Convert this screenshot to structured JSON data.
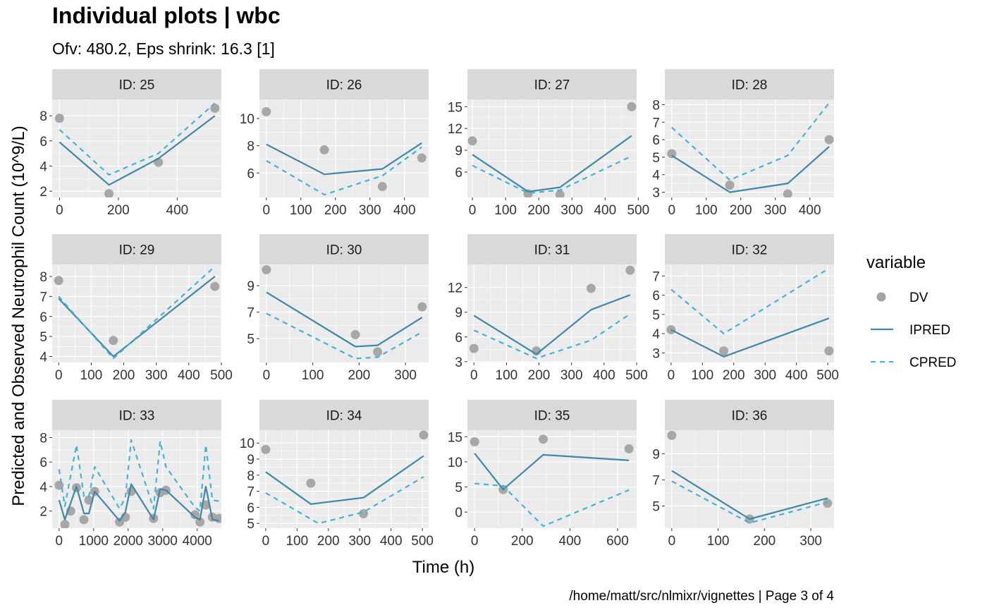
{
  "chart_data": {
    "type": "line",
    "title": "Individual plots | wbc",
    "subtitle": "Ofv: 480.2, Eps shrink: 16.3 [1]",
    "xlabel": "Time (h)",
    "ylabel": "Predicted and Observed Neutrophil Count (10^9/L)",
    "caption": "/home/matt/src/nlmixr/vignettes | Page 3 of 4",
    "legend": {
      "title": "variable",
      "position": "right",
      "entries": [
        {
          "label": "DV",
          "kind": "point",
          "color": "#a3a3a3"
        },
        {
          "label": "IPRED",
          "kind": "solid",
          "color": "#3f88a6"
        },
        {
          "label": "CPRED",
          "kind": "dashed",
          "color": "#46b1d6"
        }
      ]
    },
    "grid": true,
    "panels": [
      {
        "strip": "ID: 25",
        "xlim": [
          -25,
          550
        ],
        "ylim": [
          1.5,
          9.3
        ],
        "xticks": [
          0,
          200,
          400
        ],
        "xtick_labels": [
          "0",
          "200",
          "400"
        ],
        "yticks": [
          2,
          4,
          6,
          8
        ],
        "ytick_labels": [
          "2",
          "4",
          "6",
          "8"
        ],
        "dv": [
          [
            0,
            7.8
          ],
          [
            168,
            1.8
          ],
          [
            336,
            4.3
          ],
          [
            528,
            8.6
          ]
        ],
        "ipred": [
          [
            0,
            5.9
          ],
          [
            168,
            2.5
          ],
          [
            336,
            4.6
          ],
          [
            528,
            8.0
          ]
        ],
        "cpred": [
          [
            0,
            6.9
          ],
          [
            168,
            3.3
          ],
          [
            336,
            5.0
          ],
          [
            528,
            9.0
          ]
        ]
      },
      {
        "strip": "ID: 26",
        "xlim": [
          -20,
          470
        ],
        "ylim": [
          4.2,
          11.4
        ],
        "xticks": [
          0,
          100,
          200,
          300,
          400
        ],
        "xtick_labels": [
          "0",
          "100",
          "200",
          "300",
          "400"
        ],
        "yticks": [
          6,
          8,
          10
        ],
        "ytick_labels": [
          "6",
          "8",
          "10"
        ],
        "dv": [
          [
            0,
            10.5
          ],
          [
            168,
            7.7
          ],
          [
            336,
            5.0
          ],
          [
            450,
            7.1
          ]
        ],
        "ipred": [
          [
            0,
            8.1
          ],
          [
            168,
            5.9
          ],
          [
            336,
            6.3
          ],
          [
            450,
            8.2
          ]
        ],
        "cpred": [
          [
            0,
            6.9
          ],
          [
            168,
            4.4
          ],
          [
            336,
            5.8
          ],
          [
            450,
            7.9
          ]
        ]
      },
      {
        "strip": "ID: 27",
        "xlim": [
          -15,
          495
        ],
        "ylim": [
          2.5,
          16.0
        ],
        "xticks": [
          0,
          100,
          200,
          300,
          400,
          500
        ],
        "xtick_labels": [
          "0",
          "100",
          "200",
          "300",
          "400",
          "500"
        ],
        "yticks": [
          6,
          9,
          12,
          15
        ],
        "ytick_labels": [
          "6",
          "9",
          "12",
          "15"
        ],
        "dv": [
          [
            0,
            10.3
          ],
          [
            168,
            3.0
          ],
          [
            264,
            2.9
          ],
          [
            480,
            15.0
          ]
        ],
        "ipred": [
          [
            0,
            8.4
          ],
          [
            168,
            3.3
          ],
          [
            264,
            3.9
          ],
          [
            480,
            11.0
          ]
        ],
        "cpred": [
          [
            0,
            6.9
          ],
          [
            168,
            3.1
          ],
          [
            264,
            3.5
          ],
          [
            480,
            8.2
          ]
        ]
      },
      {
        "strip": "ID: 28",
        "xlim": [
          -20,
          470
        ],
        "ylim": [
          2.7,
          8.3
        ],
        "xticks": [
          0,
          100,
          200,
          300,
          400
        ],
        "xtick_labels": [
          "0",
          "100",
          "200",
          "300",
          "400"
        ],
        "yticks": [
          3,
          4,
          5,
          6,
          7,
          8
        ],
        "ytick_labels": [
          "3",
          "4",
          "5",
          "6",
          "7",
          "8"
        ],
        "dv": [
          [
            0,
            5.2
          ],
          [
            168,
            3.4
          ],
          [
            336,
            2.9
          ],
          [
            456,
            6.0
          ]
        ],
        "ipred": [
          [
            0,
            5.1
          ],
          [
            168,
            3.0
          ],
          [
            336,
            3.5
          ],
          [
            456,
            5.6
          ]
        ],
        "cpred": [
          [
            0,
            6.7
          ],
          [
            168,
            3.7
          ],
          [
            336,
            5.1
          ],
          [
            456,
            8.1
          ]
        ]
      },
      {
        "strip": "ID: 29",
        "xlim": [
          -20,
          500
        ],
        "ylim": [
          3.7,
          8.6
        ],
        "xticks": [
          0,
          100,
          200,
          300,
          400,
          500
        ],
        "xtick_labels": [
          "0",
          "100",
          "200",
          "300",
          "400",
          "500"
        ],
        "yticks": [
          4,
          5,
          6,
          7,
          8
        ],
        "ytick_labels": [
          "4",
          "5",
          "6",
          "7",
          "8"
        ],
        "dv": [
          [
            0,
            7.8
          ],
          [
            168,
            4.8
          ],
          [
            480,
            7.5
          ]
        ],
        "ipred": [
          [
            0,
            6.9
          ],
          [
            168,
            4.0
          ],
          [
            480,
            8.0
          ]
        ],
        "cpred": [
          [
            0,
            7.0
          ],
          [
            168,
            3.9
          ],
          [
            480,
            8.5
          ]
        ]
      },
      {
        "strip": "ID: 30",
        "xlim": [
          -15,
          350
        ],
        "ylim": [
          3.2,
          10.6
        ],
        "xticks": [
          0,
          100,
          200,
          300
        ],
        "xtick_labels": [
          "0",
          "100",
          "200",
          "300"
        ],
        "yticks": [
          5,
          7,
          9
        ],
        "ytick_labels": [
          "5",
          "7",
          "9"
        ],
        "dv": [
          [
            0,
            10.2
          ],
          [
            192,
            5.3
          ],
          [
            240,
            4.0
          ],
          [
            336,
            7.4
          ]
        ],
        "ipred": [
          [
            0,
            8.5
          ],
          [
            192,
            4.4
          ],
          [
            240,
            4.5
          ],
          [
            336,
            6.6
          ]
        ],
        "cpred": [
          [
            0,
            6.9
          ],
          [
            192,
            3.5
          ],
          [
            240,
            3.6
          ],
          [
            336,
            5.5
          ]
        ]
      },
      {
        "strip": "ID: 31",
        "xlim": [
          -20,
          500
        ],
        "ylim": [
          2.9,
          14.8
        ],
        "xticks": [
          0,
          100,
          200,
          300,
          400,
          500
        ],
        "xtick_labels": [
          "0",
          "100",
          "200",
          "300",
          "400",
          "500"
        ],
        "yticks": [
          3,
          6,
          9,
          12
        ],
        "ytick_labels": [
          "3",
          "6",
          "9",
          "12"
        ],
        "dv": [
          [
            0,
            4.6
          ],
          [
            192,
            4.3
          ],
          [
            360,
            11.9
          ],
          [
            480,
            14.1
          ]
        ],
        "ipred": [
          [
            0,
            8.6
          ],
          [
            192,
            3.9
          ],
          [
            360,
            9.3
          ],
          [
            480,
            11.1
          ]
        ],
        "cpred": [
          [
            0,
            6.8
          ],
          [
            192,
            3.4
          ],
          [
            360,
            5.6
          ],
          [
            480,
            8.8
          ]
        ]
      },
      {
        "strip": "ID: 32",
        "xlim": [
          -20,
          520
        ],
        "ylim": [
          2.5,
          7.6
        ],
        "xticks": [
          0,
          100,
          200,
          300,
          400,
          500
        ],
        "xtick_labels": [
          "0",
          "100",
          "200",
          "300",
          "400",
          "500"
        ],
        "yticks": [
          3,
          4,
          5,
          6,
          7
        ],
        "ytick_labels": [
          "3",
          "4",
          "5",
          "6",
          "7"
        ],
        "dv": [
          [
            0,
            4.2
          ],
          [
            168,
            3.1
          ],
          [
            504,
            3.1
          ]
        ],
        "ipred": [
          [
            0,
            4.2
          ],
          [
            168,
            2.8
          ],
          [
            504,
            4.8
          ]
        ],
        "cpred": [
          [
            0,
            6.3
          ],
          [
            168,
            4.0
          ],
          [
            504,
            7.4
          ]
        ]
      },
      {
        "strip": "ID: 33",
        "xlim": [
          -200,
          4700
        ],
        "ylim": [
          0.6,
          8.6
        ],
        "xticks": [
          0,
          1000,
          2000,
          3000,
          4000
        ],
        "xtick_labels": [
          "0",
          "1000",
          "2000",
          "3000",
          "4000"
        ],
        "yticks": [
          2,
          4,
          6,
          8
        ],
        "ytick_labels": [
          "2",
          "4",
          "6",
          "8"
        ],
        "dv": [
          [
            0,
            4.1
          ],
          [
            168,
            0.9
          ],
          [
            336,
            2.0
          ],
          [
            504,
            3.9
          ],
          [
            720,
            1.3
          ],
          [
            864,
            2.9
          ],
          [
            1032,
            3.6
          ],
          [
            1752,
            1.1
          ],
          [
            1920,
            1.5
          ],
          [
            2088,
            3.6
          ],
          [
            2736,
            1.4
          ],
          [
            2928,
            3.5
          ],
          [
            3096,
            3.7
          ],
          [
            3936,
            1.7
          ],
          [
            4080,
            1.1
          ],
          [
            4248,
            2.5
          ],
          [
            4440,
            1.5
          ],
          [
            4632,
            1.4
          ]
        ],
        "ipred": [
          [
            0,
            2.9
          ],
          [
            168,
            1.3
          ],
          [
            504,
            4.0
          ],
          [
            720,
            1.8
          ],
          [
            864,
            1.8
          ],
          [
            1032,
            3.6
          ],
          [
            1752,
            1.2
          ],
          [
            1920,
            1.9
          ],
          [
            2088,
            4.2
          ],
          [
            2736,
            1.3
          ],
          [
            2928,
            3.8
          ],
          [
            3096,
            3.7
          ],
          [
            3936,
            1.5
          ],
          [
            4080,
            1.3
          ],
          [
            4248,
            4.0
          ],
          [
            4440,
            1.3
          ],
          [
            4632,
            1.2
          ]
        ],
        "cpred": [
          [
            0,
            5.4
          ],
          [
            168,
            2.4
          ],
          [
            504,
            7.4
          ],
          [
            720,
            3.2
          ],
          [
            864,
            3.2
          ],
          [
            1032,
            5.6
          ],
          [
            1752,
            2.2
          ],
          [
            1920,
            3.1
          ],
          [
            2088,
            7.8
          ],
          [
            2736,
            2.2
          ],
          [
            2928,
            7.7
          ],
          [
            3096,
            5.6
          ],
          [
            3936,
            2.3
          ],
          [
            4080,
            2.0
          ],
          [
            4248,
            7.4
          ],
          [
            4440,
            2.9
          ],
          [
            4632,
            2.8
          ]
        ]
      },
      {
        "strip": "ID: 34",
        "xlim": [
          -20,
          520
        ],
        "ylim": [
          4.7,
          10.8
        ],
        "xticks": [
          0,
          100,
          200,
          300,
          400,
          500
        ],
        "xtick_labels": [
          "0",
          "100",
          "200",
          "300",
          "400",
          "500"
        ],
        "yticks": [
          5,
          6,
          7,
          8,
          9,
          10
        ],
        "ytick_labels": [
          "5",
          "6",
          "7",
          "8",
          "9",
          "10"
        ],
        "dv": [
          [
            0,
            9.6
          ],
          [
            144,
            7.5
          ],
          [
            312,
            5.6
          ],
          [
            504,
            10.5
          ]
        ],
        "ipred": [
          [
            0,
            8.2
          ],
          [
            144,
            6.2
          ],
          [
            312,
            6.6
          ],
          [
            504,
            9.2
          ]
        ],
        "cpred": [
          [
            0,
            6.9
          ],
          [
            168,
            5.0
          ],
          [
            312,
            5.7
          ],
          [
            504,
            7.9
          ]
        ]
      },
      {
        "strip": "ID: 35",
        "xlim": [
          -30,
          680
        ],
        "ylim": [
          -3.2,
          16.3
        ],
        "xticks": [
          0,
          200,
          400,
          600
        ],
        "xtick_labels": [
          "0",
          "200",
          "400",
          "600"
        ],
        "yticks": [
          0,
          5,
          10,
          15
        ],
        "ytick_labels": [
          "0",
          "5",
          "10",
          "15"
        ],
        "dv": [
          [
            0,
            14.0
          ],
          [
            120,
            4.5
          ],
          [
            288,
            14.5
          ],
          [
            648,
            12.6
          ]
        ],
        "ipred": [
          [
            0,
            11.7
          ],
          [
            120,
            4.5
          ],
          [
            288,
            11.4
          ],
          [
            648,
            10.3
          ]
        ],
        "cpred": [
          [
            0,
            5.7
          ],
          [
            120,
            5.2
          ],
          [
            288,
            -2.8
          ],
          [
            648,
            4.4
          ]
        ]
      },
      {
        "strip": "ID: 36",
        "xlim": [
          -15,
          350
        ],
        "ylim": [
          3.3,
          10.8
        ],
        "xticks": [
          0,
          100,
          200,
          300
        ],
        "xtick_labels": [
          "0",
          "100",
          "200",
          "300"
        ],
        "yticks": [
          5,
          7,
          9
        ],
        "ytick_labels": [
          "5",
          "7",
          "9"
        ],
        "dv": [
          [
            0,
            10.4
          ],
          [
            168,
            4.0
          ],
          [
            336,
            5.2
          ]
        ],
        "ipred": [
          [
            0,
            7.7
          ],
          [
            168,
            4.0
          ],
          [
            336,
            5.6
          ]
        ],
        "cpred": [
          [
            0,
            6.9
          ],
          [
            168,
            3.7
          ],
          [
            336,
            5.3
          ]
        ]
      }
    ]
  }
}
